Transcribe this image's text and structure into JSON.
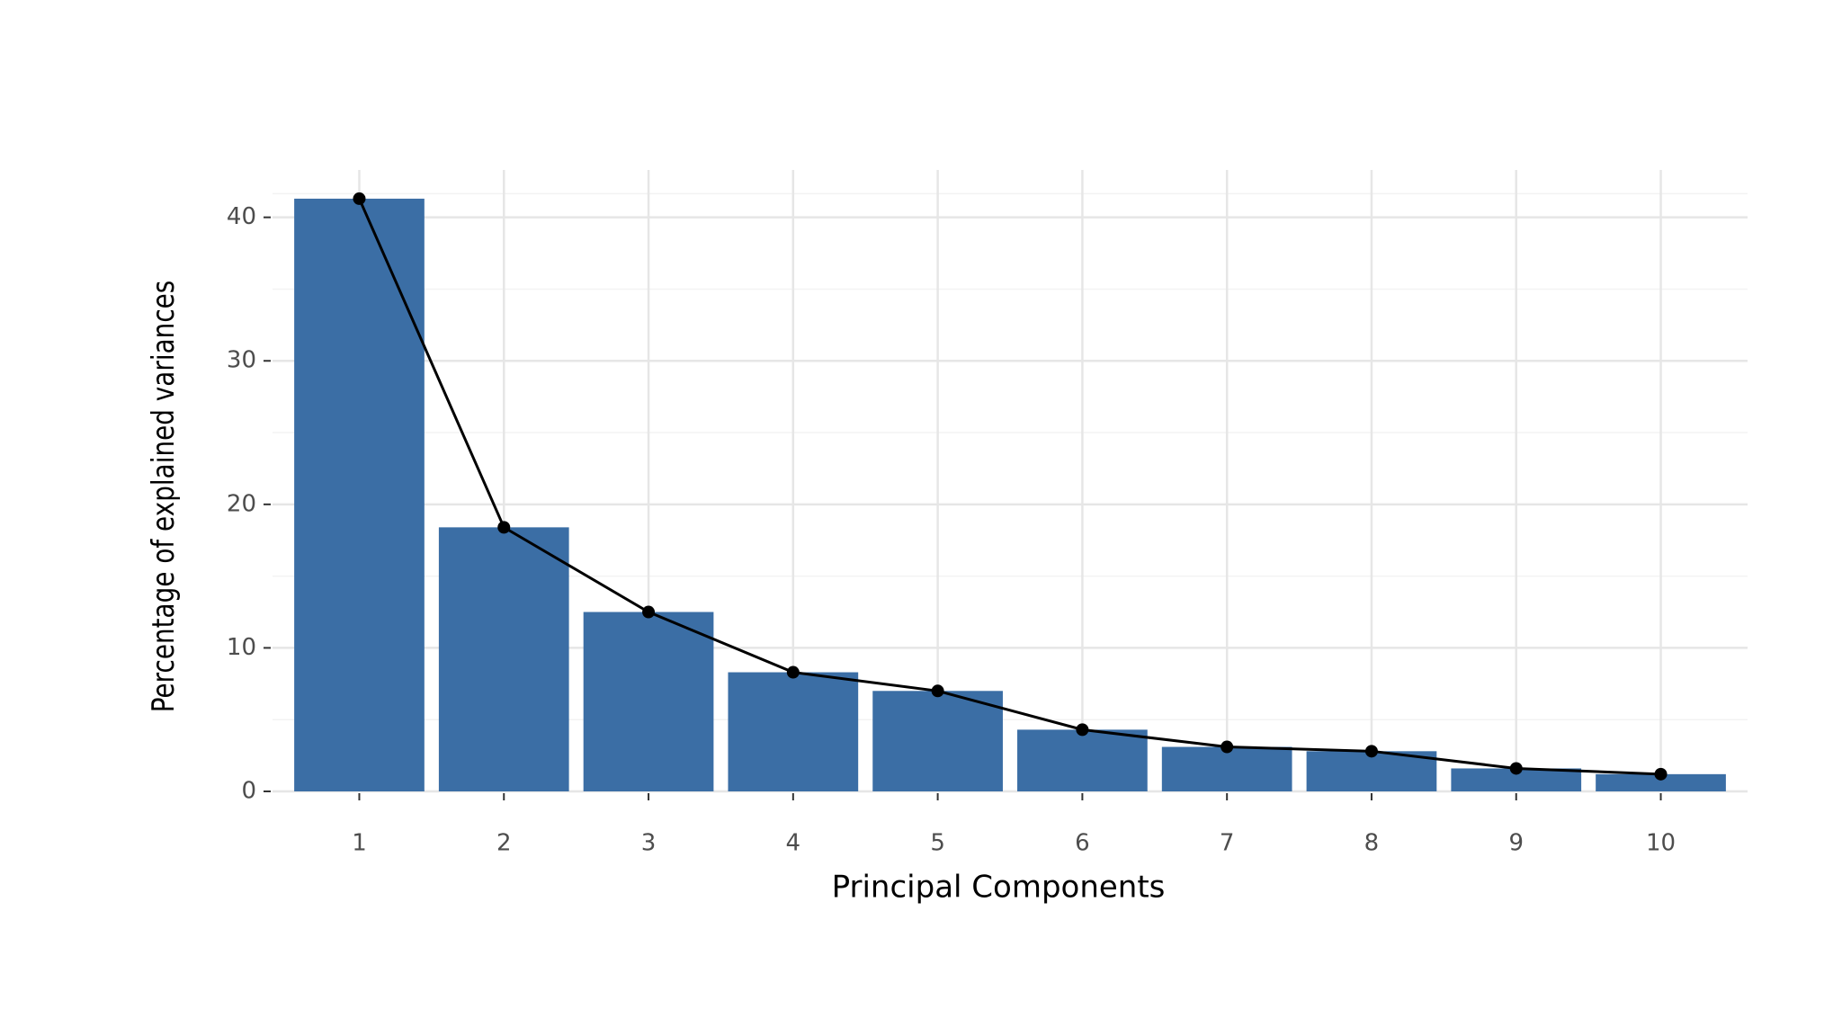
{
  "chart_data": {
    "type": "bar",
    "x_label": "Principal Components",
    "y_label": "Percentage of explained variances",
    "categories": [
      "1",
      "2",
      "3",
      "4",
      "5",
      "6",
      "7",
      "8",
      "9",
      "10"
    ],
    "values": [
      41.3,
      18.4,
      12.5,
      8.3,
      7.0,
      4.3,
      3.1,
      2.8,
      1.6,
      1.2
    ],
    "color": "#3b6ea5",
    "line_color": "#000000",
    "ylim": [
      0,
      43.3
    ],
    "yticks": [
      0,
      10,
      20,
      30,
      40
    ],
    "grid": true
  }
}
